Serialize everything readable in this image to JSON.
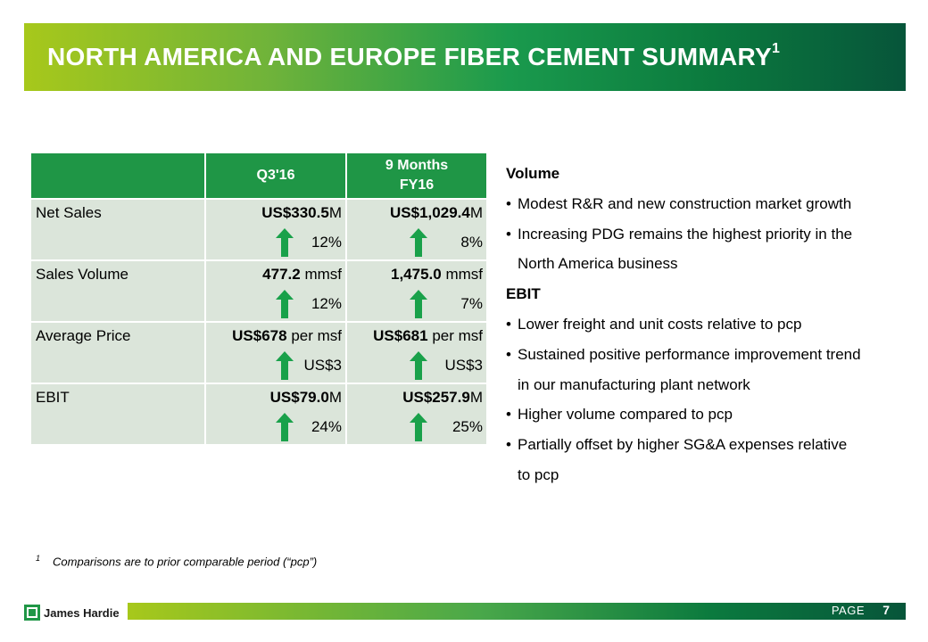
{
  "title": "NORTH AMERICA AND EUROPE FIBER CEMENT SUMMARY",
  "title_footnote": "1",
  "table": {
    "headers": [
      "",
      "Q3'16",
      "9 Months",
      "FY16"
    ],
    "rows": [
      {
        "label": "Net Sales",
        "q": {
          "bold": "US$330.5",
          "rest": "M",
          "chg": "12%"
        },
        "m": {
          "bold": "US$1,029.4",
          "rest": "M",
          "chg": "8%"
        }
      },
      {
        "label": "Sales Volume",
        "q": {
          "bold": "477.2",
          "rest": " mmsf",
          "chg": "12%"
        },
        "m": {
          "bold": "1,475.0",
          "rest": " mmsf",
          "chg": "7%"
        }
      },
      {
        "label": "Average Price",
        "q": {
          "bold": "US$678",
          "rest": " per msf",
          "chg": "US$3"
        },
        "m": {
          "bold": "US$681",
          "rest": " per msf",
          "chg": "US$3"
        }
      },
      {
        "label": "EBIT",
        "q": {
          "bold": "US$79.0",
          "rest": "M",
          "chg": "24%"
        },
        "m": {
          "bold": "US$257.9",
          "rest": "M",
          "chg": "25%"
        }
      }
    ]
  },
  "notes": {
    "volume_head": "Volume",
    "volume": [
      "Modest R&R and new construction market growth",
      "Increasing PDG remains the highest priority in the",
      "North America business"
    ],
    "ebit_head": "EBIT",
    "ebit": [
      "Lower freight and unit costs relative to pcp",
      "Sustained positive performance improvement trend",
      "in our manufacturing plant network",
      "Higher volume compared to pcp",
      "Partially offset by higher SG&A expenses relative",
      "to pcp"
    ]
  },
  "footnote": {
    "marker": "1",
    "text": "Comparisons are to prior comparable period (“pcp”)"
  },
  "footer": {
    "brand": "James Hardie",
    "page_label": "PAGE",
    "page_number": "7"
  },
  "colors": {
    "header_green": "#1f9646",
    "cell_bg": "#dbe5da",
    "arrow_green": "#19a14a"
  }
}
